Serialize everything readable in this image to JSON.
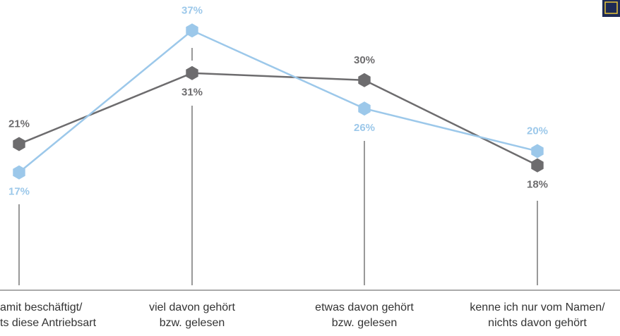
{
  "chart_data": {
    "type": "line",
    "categories": [
      [
        "amit beschäftigt/",
        "ts diese Antriebsart"
      ],
      [
        "viel davon gehört",
        "bzw. gelesen"
      ],
      [
        "etwas davon gehört",
        "bzw. gelesen"
      ],
      [
        "kenne ich nur vom Namen/",
        "nichts davon gehört"
      ]
    ],
    "series": [
      {
        "color": "#6d6c6e",
        "values": [
          21,
          31,
          30,
          18
        ],
        "value_labels": [
          "21%",
          "31%",
          "30%",
          "18%"
        ]
      },
      {
        "color": "#9cc8ea",
        "values": [
          17,
          37,
          26,
          20
        ],
        "value_labels": [
          "17%",
          "37%",
          "26%",
          "20%"
        ]
      }
    ],
    "ylim": [
      0,
      41
    ]
  }
}
